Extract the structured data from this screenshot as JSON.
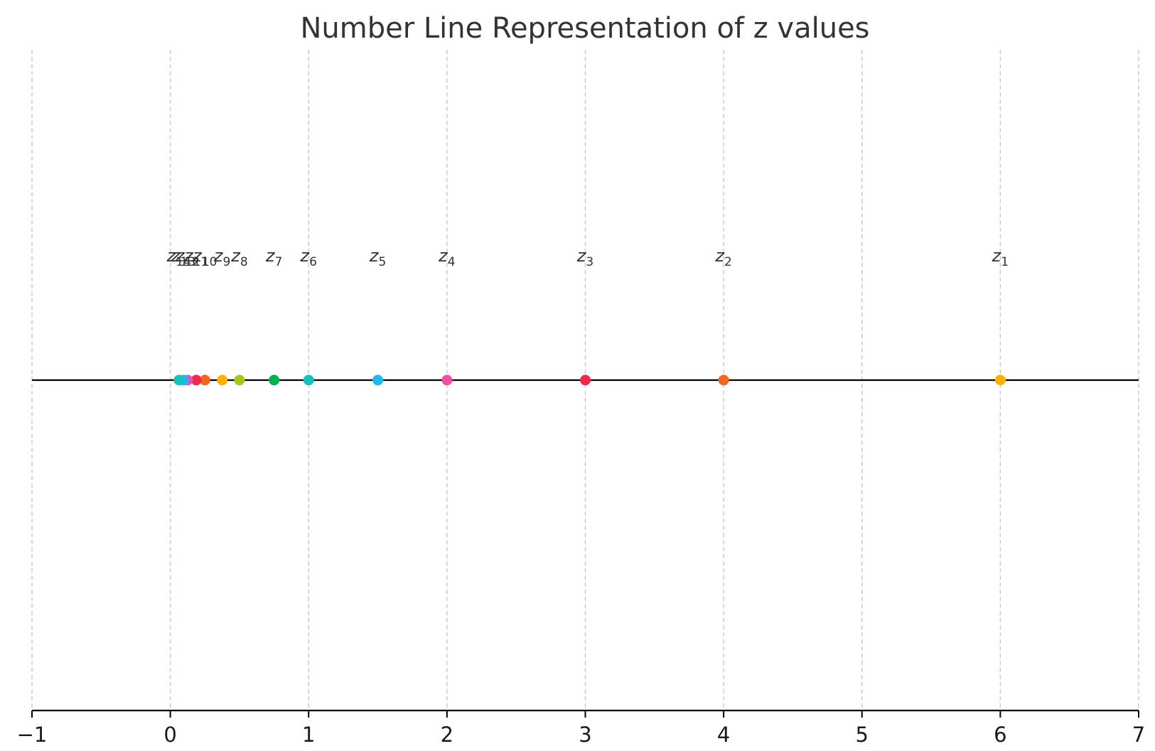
{
  "chart_data": {
    "type": "scatter",
    "title": "Number Line Representation of z values",
    "xlabel": "",
    "ylabel": "",
    "xlim": [
      -1,
      7
    ],
    "x_ticks": [
      -1,
      0,
      1,
      2,
      3,
      4,
      5,
      6,
      7
    ],
    "x_tick_labels": [
      "−1",
      "0",
      "1",
      "2",
      "3",
      "4",
      "5",
      "6",
      "7"
    ],
    "grid": "vertical dashed",
    "points": [
      {
        "label_base": "z",
        "label_sub": "1",
        "x": 6,
        "color": "#ffb000"
      },
      {
        "label_base": "z",
        "label_sub": "2",
        "x": 4,
        "color": "#f26522"
      },
      {
        "label_base": "z",
        "label_sub": "3",
        "x": 3,
        "color": "#ee2a4f"
      },
      {
        "label_base": "z",
        "label_sub": "4",
        "x": 2,
        "color": "#f24ea4"
      },
      {
        "label_base": "z",
        "label_sub": "5",
        "x": 1.5,
        "color": "#21b6f2"
      },
      {
        "label_base": "z",
        "label_sub": "6",
        "x": 1,
        "color": "#12c4bd"
      },
      {
        "label_base": "z",
        "label_sub": "7",
        "x": 0.75,
        "color": "#00b050"
      },
      {
        "label_base": "z",
        "label_sub": "8",
        "x": 0.5,
        "color": "#a6c81b"
      },
      {
        "label_base": "z",
        "label_sub": "9",
        "x": 0.375,
        "color": "#ffb000"
      },
      {
        "label_base": "z",
        "label_sub": "10",
        "x": 0.25,
        "color": "#f26522"
      },
      {
        "label_base": "z",
        "label_sub": "11",
        "x": 0.1875,
        "color": "#ee2a4f"
      },
      {
        "label_base": "z",
        "label_sub": "12",
        "x": 0.125,
        "color": "#f24ea4"
      },
      {
        "label_base": "z",
        "label_sub": "13",
        "x": 0.094,
        "color": "#21b6f2"
      },
      {
        "label_base": "z",
        "label_sub": "14",
        "x": 0.0625,
        "color": "#12c4bd"
      }
    ]
  }
}
